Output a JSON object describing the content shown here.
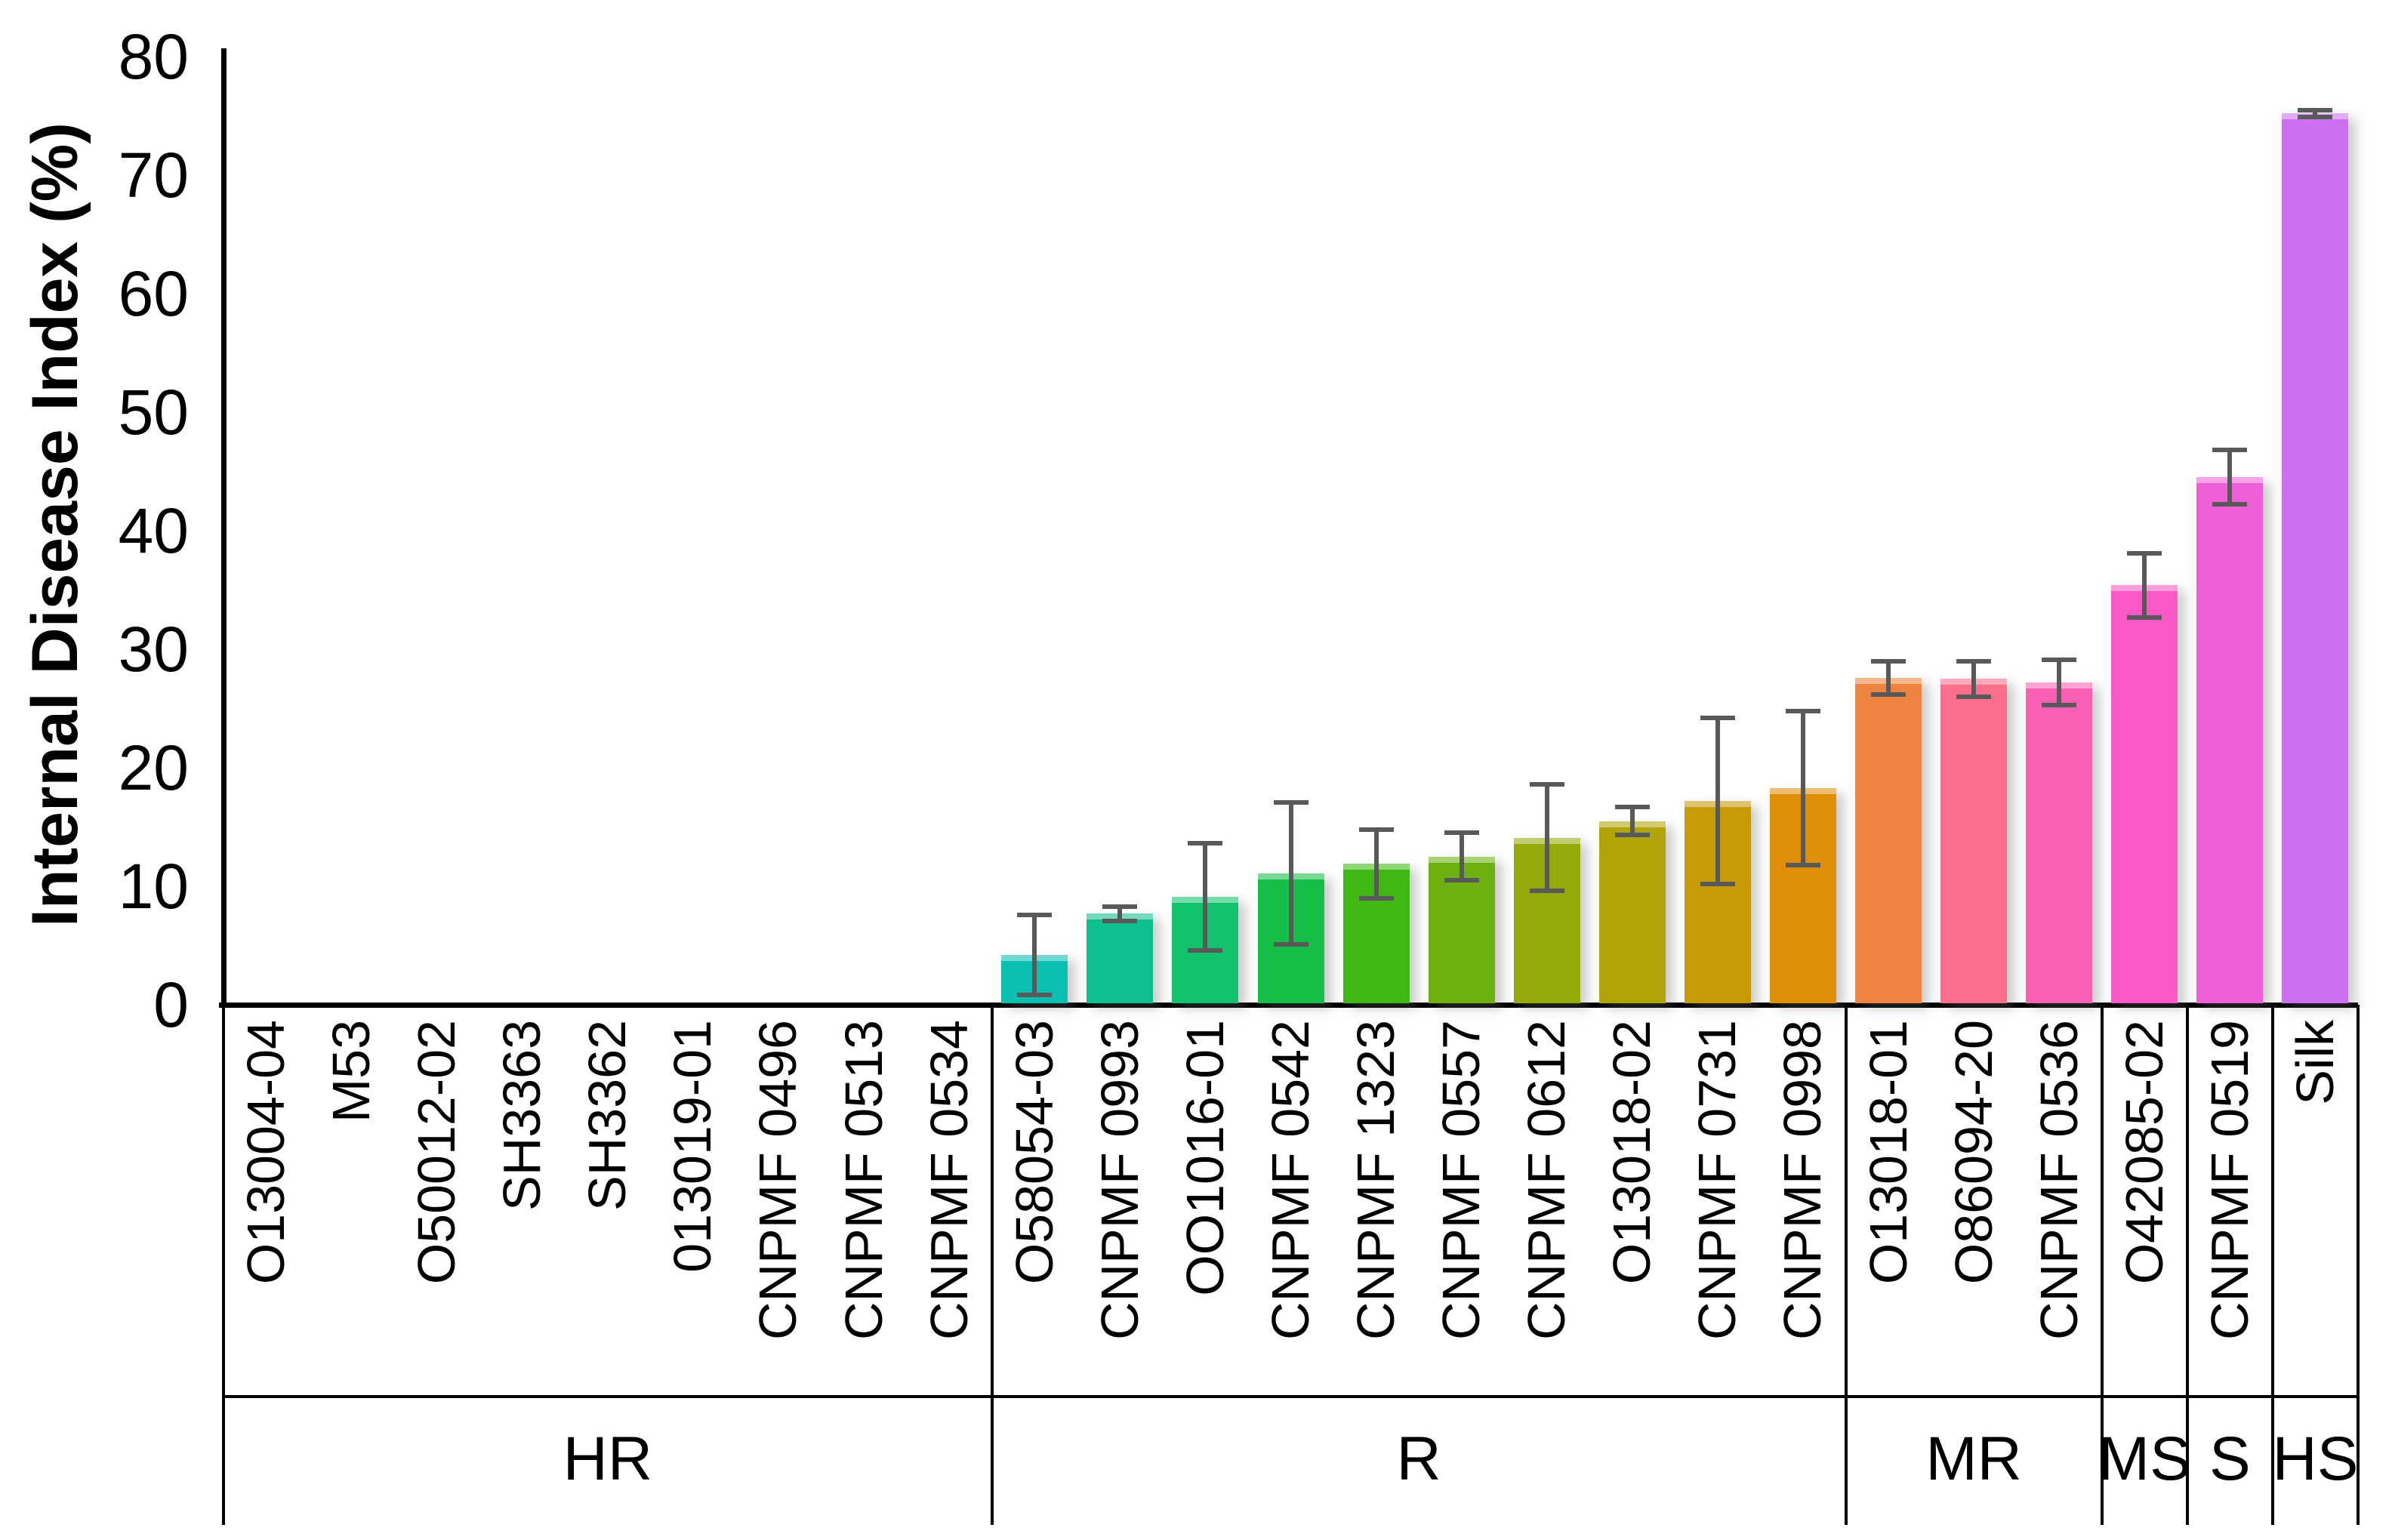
{
  "chart_data": {
    "type": "bar",
    "title": "",
    "xlabel": "",
    "ylabel": "Internal Disease Index (%)",
    "ylim": [
      0,
      80
    ],
    "yticks": [
      0,
      10,
      20,
      30,
      40,
      50,
      60,
      70,
      80
    ],
    "grid": false,
    "legend": "none",
    "error_bar_color": "#595959",
    "groups": [
      {
        "label": "HR",
        "bars": [
          {
            "label": "O13004-04",
            "value": 0,
            "err": 0,
            "color": null
          },
          {
            "label": "M53",
            "value": 0,
            "err": 0,
            "color": null
          },
          {
            "label": "O50012-02",
            "value": 0,
            "err": 0,
            "color": null
          },
          {
            "label": "SH3363",
            "value": 0,
            "err": 0,
            "color": null
          },
          {
            "label": "SH3362",
            "value": 0,
            "err": 0,
            "color": null
          },
          {
            "label": "013019-01",
            "value": 0,
            "err": 0,
            "color": null
          },
          {
            "label": "CNPMF 0496",
            "value": 0,
            "err": 0,
            "color": null
          },
          {
            "label": "CNPMF 0513",
            "value": 0,
            "err": 0,
            "color": null
          },
          {
            "label": "CNPMF 0534",
            "value": 0,
            "err": 0,
            "color": null
          }
        ]
      },
      {
        "label": "R",
        "bars": [
          {
            "label": "O58054-03",
            "value": 4.2,
            "err": 3.4,
            "color": "#0ABEB2"
          },
          {
            "label": "CNPMF 0993",
            "value": 7.7,
            "err": 0.6,
            "color": "#0FBF8F"
          },
          {
            "label": "OO1016-01",
            "value": 9.1,
            "err": 4.5,
            "color": "#13C06B"
          },
          {
            "label": "CNPMF 0542",
            "value": 11.1,
            "err": 6.0,
            "color": "#16BF47"
          },
          {
            "label": "CNPMF 1323",
            "value": 11.9,
            "err": 2.9,
            "color": "#3FB814"
          },
          {
            "label": "CNPMF 0557",
            "value": 12.5,
            "err": 2.0,
            "color": "#6CB10E"
          },
          {
            "label": "CNPMF 0612",
            "value": 14.1,
            "err": 4.5,
            "color": "#95A908"
          },
          {
            "label": "O13018-02",
            "value": 15.5,
            "err": 1.2,
            "color": "#B0A408"
          },
          {
            "label": "CNPMF 0731",
            "value": 17.2,
            "err": 7.0,
            "color": "#C89A08"
          },
          {
            "label": "CNPMF 0998",
            "value": 18.3,
            "err": 6.5,
            "color": "#E08D08"
          }
        ]
      },
      {
        "label": "MR",
        "bars": [
          {
            "label": "O13018-01",
            "value": 27.6,
            "err": 1.4,
            "color": "#EE8440"
          },
          {
            "label": "O86094-20",
            "value": 27.5,
            "err": 1.5,
            "color": "#FB6E8C"
          },
          {
            "label": "CNPMF 0536",
            "value": 27.2,
            "err": 1.9,
            "color": "#FB5FB3"
          }
        ]
      },
      {
        "label": "MS",
        "bars": [
          {
            "label": "O42085-02",
            "value": 35.4,
            "err": 2.7,
            "color": "#FA58C6"
          }
        ]
      },
      {
        "label": "S",
        "bars": [
          {
            "label": "CNPMF 0519",
            "value": 44.5,
            "err": 2.3,
            "color": "#EE5FD8"
          }
        ]
      },
      {
        "label": "HS",
        "bars": [
          {
            "label": "Silk",
            "value": 75.2,
            "err": 0.3,
            "color": "#CE6FF2"
          }
        ]
      }
    ]
  }
}
